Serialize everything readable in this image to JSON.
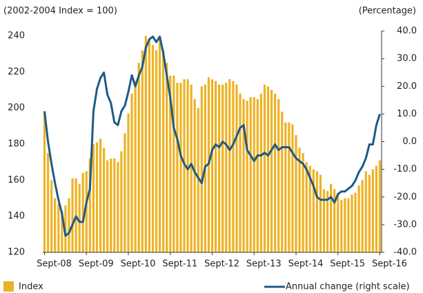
{
  "chart_data": {
    "type": "bar-line",
    "left_axis_label": "(2002-2004 Index = 100)",
    "right_axis_label": "(Percentage)",
    "categories": [
      "Sept-08",
      null,
      null,
      null,
      null,
      null,
      null,
      null,
      null,
      null,
      null,
      null,
      "Sept-09",
      null,
      null,
      null,
      null,
      null,
      null,
      null,
      null,
      null,
      null,
      null,
      "Sept-10",
      null,
      null,
      null,
      null,
      null,
      null,
      null,
      null,
      null,
      null,
      null,
      "Sept-11",
      null,
      null,
      null,
      null,
      null,
      null,
      null,
      null,
      null,
      null,
      null,
      "Sept-12",
      null,
      null,
      null,
      null,
      null,
      null,
      null,
      null,
      null,
      null,
      null,
      "Sept-13",
      null,
      null,
      null,
      null,
      null,
      null,
      null,
      null,
      null,
      null,
      null,
      "Sept-14",
      null,
      null,
      null,
      null,
      null,
      null,
      null,
      null,
      null,
      null,
      null,
      "Sept-15",
      null,
      null,
      null,
      null,
      null,
      null,
      null,
      null,
      null,
      null,
      null,
      "Sept-16"
    ],
    "series": [
      {
        "name": "Index",
        "type": "bar",
        "color": "#edb325",
        "values": [
          198,
          175,
          160,
          150,
          147,
          143,
          146,
          150,
          161,
          161,
          158,
          164,
          165,
          172,
          180,
          181,
          183,
          178,
          171,
          172,
          172,
          170,
          176,
          186,
          197,
          208,
          215,
          225,
          232,
          240,
          238,
          235,
          232,
          238,
          232,
          225,
          218,
          218,
          214,
          214,
          216,
          216,
          213,
          205,
          200,
          212,
          213,
          217,
          216,
          215,
          213,
          213,
          214,
          216,
          215,
          213,
          208,
          205,
          204,
          206,
          206,
          205,
          208,
          213,
          212,
          210,
          208,
          205,
          198,
          192,
          192,
          191,
          185,
          178,
          175,
          170,
          168,
          166,
          165,
          163,
          155,
          154,
          158,
          155,
          153,
          149,
          150,
          150,
          152,
          153,
          157,
          160,
          165,
          163,
          166,
          168,
          171
        ]
      },
      {
        "name": "Annual change (right scale)",
        "type": "line",
        "axis": "y2",
        "color": "#1c5a86",
        "values": [
          11,
          0,
          -8,
          -15,
          -21,
          -26,
          -34,
          -33,
          -30,
          -27,
          -29,
          -29,
          -22,
          -17,
          11,
          19,
          23,
          25,
          17,
          14,
          7,
          6,
          11,
          13,
          18,
          24,
          20,
          24,
          27,
          34,
          37,
          38,
          36,
          38,
          32,
          24,
          16,
          5,
          1,
          -5,
          -8,
          -10,
          -8,
          -11,
          -13,
          -15,
          -9,
          -8,
          -3,
          -1,
          -2,
          0,
          -1,
          -3,
          -1,
          2,
          5,
          6,
          -3,
          -5,
          -7,
          -5,
          -5,
          -4,
          -5,
          -3,
          -1,
          -3,
          -2,
          -2,
          -2,
          -4,
          -6,
          -7,
          -8,
          -10,
          -13,
          -16,
          -20,
          -21,
          -21,
          -21,
          -20,
          -22,
          -19,
          -18,
          -18,
          -17,
          -16,
          -14,
          -11,
          -9,
          -6,
          -1,
          -1,
          6,
          10
        ]
      }
    ],
    "ylim": [
      120,
      242.7
    ],
    "yticks": [
      120,
      140,
      160,
      180,
      200,
      220,
      240
    ],
    "y2lim": [
      -40,
      40
    ],
    "y2ticks": [
      {
        "value": -40,
        "label": "-40.0"
      },
      {
        "value": -30,
        "label": "-30.0"
      },
      {
        "value": -20,
        "label": "-20.0"
      },
      {
        "value": -10,
        "label": "-10.0"
      },
      {
        "value": 0,
        "label": "0.0"
      },
      {
        "value": 10,
        "label": "10.0"
      },
      {
        "value": 20,
        "label": "20.0"
      },
      {
        "value": 30,
        "label": "30.0"
      },
      {
        "value": 40,
        "label": "40.0"
      }
    ],
    "legend": "bottom"
  }
}
